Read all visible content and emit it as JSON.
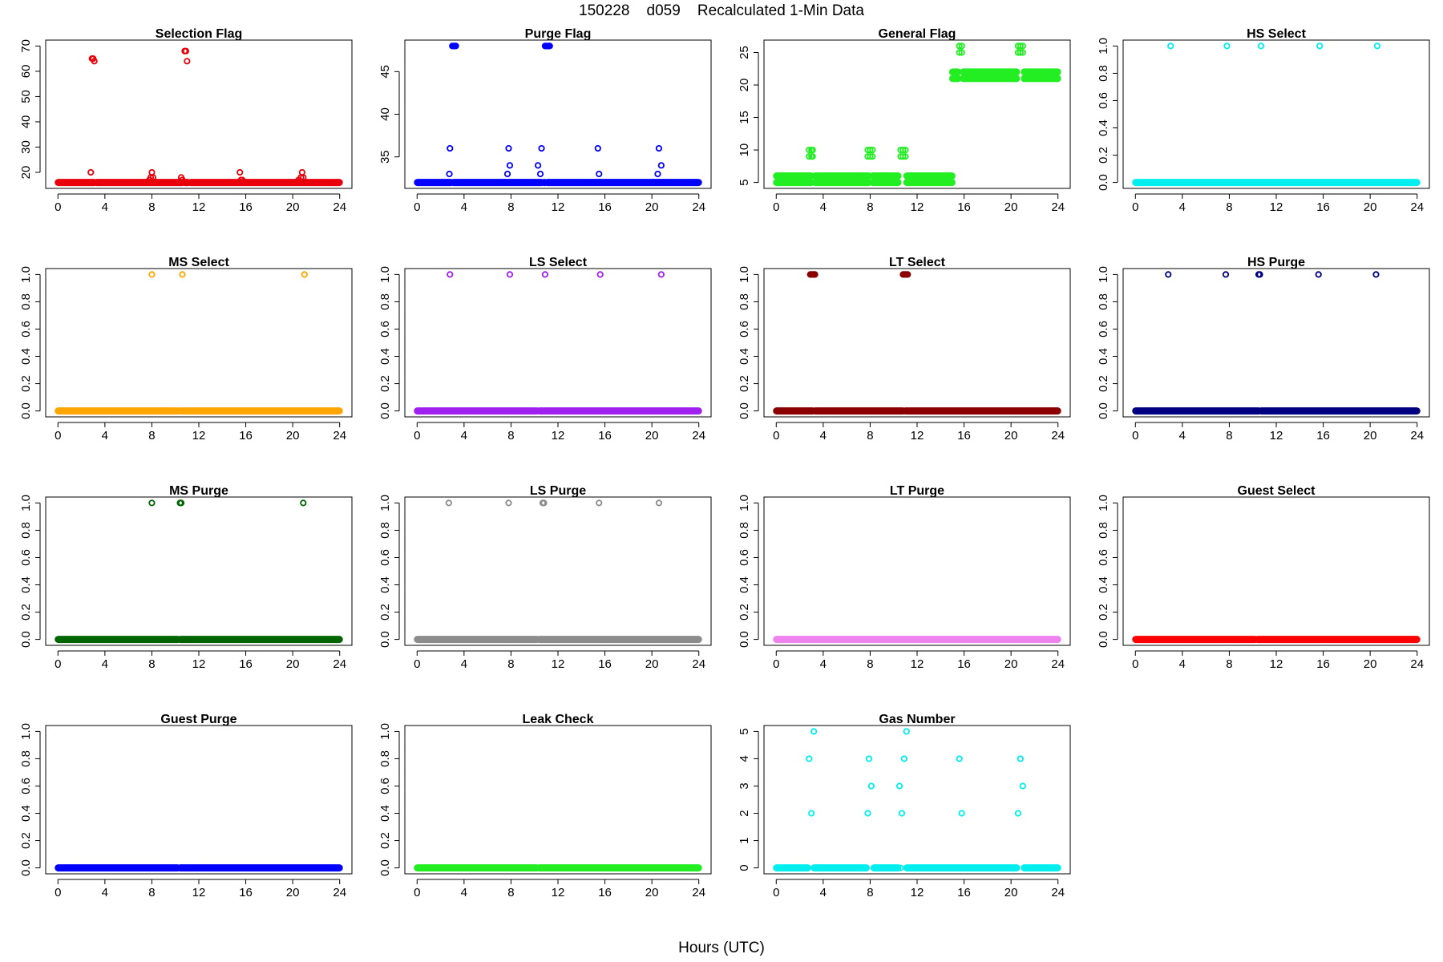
{
  "figure": {
    "title": "150228    d059    Recalculated 1-Min Data",
    "xlabel": "Hours (UTC)"
  },
  "chart_data": [
    {
      "type": "scatter",
      "title": "Selection Flag",
      "color": "#e8000b",
      "xlim": [
        0,
        24
      ],
      "xticks": [
        0,
        4,
        8,
        12,
        16,
        20,
        24
      ],
      "ylim": [
        16,
        70
      ],
      "yticks": [
        20,
        30,
        40,
        50,
        60,
        70
      ],
      "base": {
        "value": 16,
        "gaps": [
          3.2,
          10.7,
          11.2
        ]
      },
      "points": [
        [
          2.8,
          20
        ],
        [
          2.9,
          65
        ],
        [
          3.0,
          65
        ],
        [
          3.1,
          64
        ],
        [
          7.7,
          16
        ],
        [
          7.8,
          17
        ],
        [
          7.9,
          18
        ],
        [
          8.0,
          20
        ],
        [
          8.1,
          18
        ],
        [
          10.4,
          16
        ],
        [
          10.5,
          18
        ],
        [
          10.6,
          17
        ],
        [
          10.8,
          68
        ],
        [
          10.9,
          68
        ],
        [
          11.0,
          64
        ],
        [
          15.5,
          20
        ],
        [
          15.6,
          17
        ],
        [
          15.7,
          17
        ],
        [
          20.5,
          17
        ],
        [
          20.7,
          18
        ],
        [
          20.8,
          20
        ],
        [
          20.9,
          18
        ]
      ]
    },
    {
      "type": "scatter",
      "title": "Purge Flag",
      "color": "#0000ff",
      "xlim": [
        0,
        24
      ],
      "xticks": [
        0,
        4,
        8,
        12,
        16,
        20,
        24
      ],
      "ylim": [
        32,
        48
      ],
      "yticks": [
        35,
        40,
        45
      ],
      "base": {
        "value": 32,
        "gaps": [
          3.0,
          10.7,
          11.0
        ]
      },
      "points": [
        [
          2.75,
          33
        ],
        [
          2.8,
          36
        ],
        [
          3.0,
          48
        ],
        [
          3.1,
          48
        ],
        [
          3.2,
          48
        ],
        [
          3.3,
          48
        ],
        [
          7.7,
          33
        ],
        [
          7.8,
          36
        ],
        [
          7.9,
          34
        ],
        [
          10.3,
          34
        ],
        [
          10.5,
          33
        ],
        [
          10.6,
          36
        ],
        [
          10.9,
          48
        ],
        [
          11.0,
          48
        ],
        [
          11.1,
          48
        ],
        [
          11.2,
          48
        ],
        [
          11.3,
          48
        ],
        [
          15.4,
          36
        ],
        [
          15.5,
          33
        ],
        [
          20.5,
          33
        ],
        [
          20.6,
          36
        ],
        [
          20.8,
          34
        ]
      ]
    },
    {
      "type": "scatter",
      "title": "General Flag",
      "color": "#22ee22",
      "xlim": [
        0,
        24
      ],
      "xticks": [
        0,
        4,
        8,
        12,
        16,
        20,
        24
      ],
      "ylim": [
        5,
        26
      ],
      "yticks": [
        5,
        10,
        15,
        20,
        25
      ],
      "ranges": [
        [
          0,
          3.0,
          5
        ],
        [
          0,
          3.0,
          6
        ],
        [
          3.3,
          7.9,
          5
        ],
        [
          3.3,
          7.9,
          6
        ],
        [
          8.2,
          10.4,
          5
        ],
        [
          8.2,
          10.4,
          6
        ],
        [
          11.1,
          15.0,
          5
        ],
        [
          11.1,
          15.0,
          6
        ],
        [
          15.0,
          15.5,
          21
        ],
        [
          15.0,
          15.5,
          22
        ],
        [
          15.9,
          20.5,
          21
        ],
        [
          15.9,
          20.5,
          22
        ],
        [
          21.1,
          24.0,
          21
        ],
        [
          21.1,
          24.0,
          22
        ]
      ],
      "points": [
        [
          2.8,
          9
        ],
        [
          3.0,
          9
        ],
        [
          3.1,
          9
        ],
        [
          2.8,
          10
        ],
        [
          3.0,
          10
        ],
        [
          3.1,
          10
        ],
        [
          7.8,
          9
        ],
        [
          8.0,
          9
        ],
        [
          8.2,
          9
        ],
        [
          7.8,
          10
        ],
        [
          8.0,
          10
        ],
        [
          8.2,
          10
        ],
        [
          10.4,
          6
        ],
        [
          10.6,
          9
        ],
        [
          10.8,
          9
        ],
        [
          11.0,
          9
        ],
        [
          10.6,
          10
        ],
        [
          10.8,
          10
        ],
        [
          11.0,
          10
        ],
        [
          15.6,
          25
        ],
        [
          15.8,
          25
        ],
        [
          15.6,
          26
        ],
        [
          15.8,
          26
        ],
        [
          20.6,
          25
        ],
        [
          20.8,
          25
        ],
        [
          21.0,
          25
        ],
        [
          20.6,
          26
        ],
        [
          20.8,
          26
        ],
        [
          21.0,
          26
        ]
      ]
    },
    {
      "type": "scatter",
      "title": "HS Select",
      "color": "#00eeee",
      "xlim": [
        0,
        24
      ],
      "xticks": [
        0,
        4,
        8,
        12,
        16,
        20,
        24
      ],
      "ylim": [
        0,
        1
      ],
      "yticks": [
        0.0,
        0.2,
        0.4,
        0.6,
        0.8,
        1.0
      ],
      "base": {
        "value": 0,
        "gaps": []
      },
      "points": [
        [
          3.0,
          1
        ],
        [
          7.8,
          1
        ],
        [
          10.7,
          1
        ],
        [
          15.7,
          1
        ],
        [
          20.6,
          1
        ]
      ]
    },
    {
      "type": "scatter",
      "title": "MS Select",
      "color": "#ffa500",
      "xlim": [
        0,
        24
      ],
      "xticks": [
        0,
        4,
        8,
        12,
        16,
        20,
        24
      ],
      "ylim": [
        0,
        1
      ],
      "yticks": [
        0.0,
        0.2,
        0.4,
        0.6,
        0.8,
        1.0
      ],
      "base": {
        "value": 0,
        "gaps": [
          10.3
        ]
      },
      "points": [
        [
          8.0,
          1
        ],
        [
          10.6,
          1
        ],
        [
          21.0,
          1
        ]
      ]
    },
    {
      "type": "scatter",
      "title": "LS Select",
      "color": "#a020f0",
      "xlim": [
        0,
        24
      ],
      "xticks": [
        0,
        4,
        8,
        12,
        16,
        20,
        24
      ],
      "ylim": [
        0,
        1
      ],
      "yticks": [
        0.0,
        0.2,
        0.4,
        0.6,
        0.8,
        1.0
      ],
      "base": {
        "value": 0,
        "gaps": [
          10.3
        ]
      },
      "points": [
        [
          2.8,
          1
        ],
        [
          7.9,
          1
        ],
        [
          10.9,
          1
        ],
        [
          15.6,
          1
        ],
        [
          20.8,
          1
        ]
      ]
    },
    {
      "type": "scatter",
      "title": "LT Select",
      "color": "#8b0000",
      "xlim": [
        0,
        24
      ],
      "xticks": [
        0,
        4,
        8,
        12,
        16,
        20,
        24
      ],
      "ylim": [
        0,
        1
      ],
      "yticks": [
        0.0,
        0.2,
        0.4,
        0.6,
        0.8,
        1.0
      ],
      "base": {
        "value": 0,
        "gaps": [
          3.2,
          10.9
        ]
      },
      "points": [
        [
          2.9,
          1
        ],
        [
          3.0,
          1
        ],
        [
          3.1,
          1
        ],
        [
          3.2,
          1
        ],
        [
          3.3,
          1
        ],
        [
          10.8,
          1
        ],
        [
          10.9,
          1
        ],
        [
          11.0,
          1
        ],
        [
          11.1,
          1
        ],
        [
          11.2,
          1
        ]
      ]
    },
    {
      "type": "scatter",
      "title": "HS Purge",
      "color": "#000080",
      "xlim": [
        0,
        24
      ],
      "xticks": [
        0,
        4,
        8,
        12,
        16,
        20,
        24
      ],
      "ylim": [
        0,
        1
      ],
      "yticks": [
        0.0,
        0.2,
        0.4,
        0.6,
        0.8,
        1.0
      ],
      "base": {
        "value": 0,
        "gaps": [
          10.6
        ]
      },
      "points": [
        [
          2.8,
          1
        ],
        [
          7.7,
          1
        ],
        [
          10.5,
          1
        ],
        [
          10.6,
          1
        ],
        [
          15.6,
          1
        ],
        [
          20.5,
          1
        ]
      ]
    },
    {
      "type": "scatter",
      "title": "MS Purge",
      "color": "#006400",
      "xlim": [
        0,
        24
      ],
      "xticks": [
        0,
        4,
        8,
        12,
        16,
        20,
        24
      ],
      "ylim": [
        0,
        1
      ],
      "yticks": [
        0.0,
        0.2,
        0.4,
        0.6,
        0.8,
        1.0
      ],
      "base": {
        "value": 0,
        "gaps": [
          10.3
        ]
      },
      "points": [
        [
          8.0,
          1
        ],
        [
          10.4,
          1
        ],
        [
          10.5,
          1
        ],
        [
          20.9,
          1
        ]
      ]
    },
    {
      "type": "scatter",
      "title": "LS Purge",
      "color": "#8c8c8c",
      "xlim": [
        0,
        24
      ],
      "xticks": [
        0,
        4,
        8,
        12,
        16,
        20,
        24
      ],
      "ylim": [
        0,
        1
      ],
      "yticks": [
        0.0,
        0.2,
        0.4,
        0.6,
        0.8,
        1.0
      ],
      "base": {
        "value": 0,
        "gaps": [
          10.3
        ]
      },
      "points": [
        [
          2.7,
          1
        ],
        [
          7.8,
          1
        ],
        [
          10.7,
          1
        ],
        [
          10.8,
          1
        ],
        [
          15.5,
          1
        ],
        [
          20.6,
          1
        ]
      ]
    },
    {
      "type": "scatter",
      "title": "LT Purge",
      "color": "#ee82ee",
      "xlim": [
        0,
        24
      ],
      "xticks": [
        0,
        4,
        8,
        12,
        16,
        20,
        24
      ],
      "ylim": [
        0,
        1
      ],
      "yticks": [
        0.0,
        0.2,
        0.4,
        0.6,
        0.8,
        1.0
      ],
      "base": {
        "value": 0,
        "gaps": []
      },
      "points": []
    },
    {
      "type": "scatter",
      "title": "Guest Select",
      "color": "#ff0000",
      "xlim": [
        0,
        24
      ],
      "xticks": [
        0,
        4,
        8,
        12,
        16,
        20,
        24
      ],
      "ylim": [
        0,
        1
      ],
      "yticks": [
        0.0,
        0.2,
        0.4,
        0.6,
        0.8,
        1.0
      ],
      "base": {
        "value": 0,
        "gaps": [
          10.3
        ]
      },
      "points": []
    },
    {
      "type": "scatter",
      "title": "Guest Purge",
      "color": "#0000ff",
      "xlim": [
        0,
        24
      ],
      "xticks": [
        0,
        4,
        8,
        12,
        16,
        20,
        24
      ],
      "ylim": [
        0,
        1
      ],
      "yticks": [
        0.0,
        0.2,
        0.4,
        0.6,
        0.8,
        1.0
      ],
      "base": {
        "value": 0,
        "gaps": [
          10.3
        ]
      },
      "points": []
    },
    {
      "type": "scatter",
      "title": "Leak Check",
      "color": "#22ee22",
      "xlim": [
        0,
        24
      ],
      "xticks": [
        0,
        4,
        8,
        12,
        16,
        20,
        24
      ],
      "ylim": [
        0,
        1
      ],
      "yticks": [
        0.0,
        0.2,
        0.4,
        0.6,
        0.8,
        1.0
      ],
      "base": {
        "value": 0,
        "gaps": [
          10.3
        ]
      },
      "points": []
    },
    {
      "type": "scatter",
      "title": "Gas Number",
      "color": "#00eeee",
      "xlim": [
        0,
        24
      ],
      "xticks": [
        0,
        4,
        8,
        12,
        16,
        20,
        24
      ],
      "ylim": [
        0,
        5
      ],
      "yticks": [
        0,
        1,
        2,
        3,
        4,
        5
      ],
      "ranges": [
        [
          0,
          2.7,
          0
        ],
        [
          3.2,
          7.7,
          0
        ],
        [
          8.3,
          10.4,
          0
        ],
        [
          11.1,
          20.5,
          0
        ],
        [
          21.1,
          24.0,
          0
        ]
      ],
      "points": [
        [
          2.8,
          4
        ],
        [
          3.0,
          2
        ],
        [
          3.2,
          5
        ],
        [
          7.8,
          2
        ],
        [
          7.9,
          4
        ],
        [
          8.1,
          3
        ],
        [
          10.5,
          3
        ],
        [
          10.6,
          0
        ],
        [
          10.7,
          2
        ],
        [
          10.9,
          4
        ],
        [
          11.1,
          5
        ],
        [
          15.6,
          4
        ],
        [
          15.8,
          2
        ],
        [
          20.6,
          2
        ],
        [
          20.8,
          4
        ],
        [
          21.0,
          3
        ]
      ]
    }
  ]
}
